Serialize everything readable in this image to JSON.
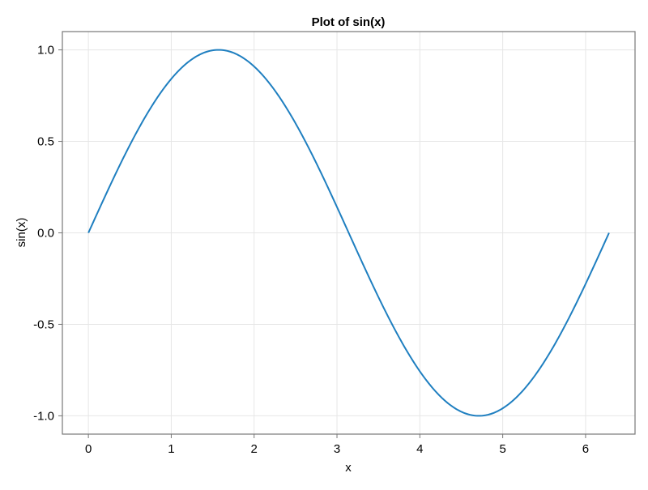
{
  "chart_data": {
    "type": "line",
    "title": "Plot of sin(x)",
    "xlabel": "x",
    "ylabel": "sin(x)",
    "xlim": [
      -0.314,
      6.597
    ],
    "ylim": [
      -1.1,
      1.1
    ],
    "xticks": [
      0,
      1,
      2,
      3,
      4,
      5,
      6
    ],
    "xtick_labels": [
      "0",
      "1",
      "2",
      "3",
      "4",
      "5",
      "6"
    ],
    "yticks": [
      -1.0,
      -0.5,
      0.0,
      0.5,
      1.0
    ],
    "ytick_labels": [
      "-1.0",
      "-0.5",
      "0.0",
      "0.5",
      "1.0"
    ],
    "grid": true,
    "series": [
      {
        "function": "sin(x)",
        "x_range": [
          0,
          6.2832
        ],
        "color": "#1f7fc0"
      }
    ]
  }
}
